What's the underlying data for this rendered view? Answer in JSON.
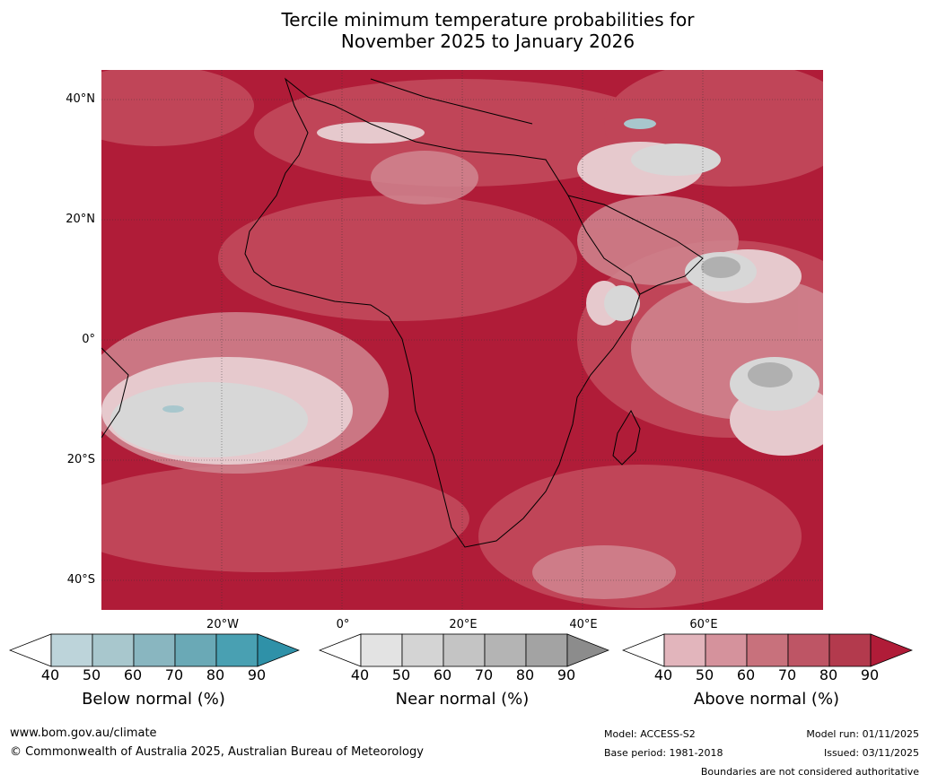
{
  "title": {
    "line1": "Tercile minimum temperature probabilities for",
    "line2": "November 2025 to January 2026"
  },
  "map": {
    "lat_labels": [
      "40°N",
      "20°N",
      "0°",
      "20°S",
      "40°S"
    ],
    "lon_labels": [
      "20°W",
      "0°",
      "20°E",
      "40°E",
      "60°E"
    ]
  },
  "legend": {
    "below": {
      "label": "Below normal (%)",
      "ticks": [
        "40",
        "50",
        "60",
        "70",
        "80",
        "90"
      ],
      "colors": [
        "#ffffff",
        "#bdd4da",
        "#a8c7cd",
        "#89b6c0",
        "#6aa9b6",
        "#49a0b2",
        "#2f91a8"
      ]
    },
    "near": {
      "label": "Near normal (%)",
      "ticks": [
        "40",
        "50",
        "60",
        "70",
        "80",
        "90"
      ],
      "colors": [
        "#ffffff",
        "#e3e3e3",
        "#d4d4d4",
        "#c4c4c4",
        "#b4b4b4",
        "#a3a3a3",
        "#8c8c8c"
      ]
    },
    "above": {
      "label": "Above normal (%)",
      "ticks": [
        "40",
        "50",
        "60",
        "70",
        "80",
        "90"
      ],
      "colors": [
        "#ffffff",
        "#e2b5bc",
        "#d5929c",
        "#c8717c",
        "#be5565",
        "#b33a4d",
        "#b01c38"
      ]
    }
  },
  "footer": {
    "website": "www.bom.gov.au/climate",
    "copyright": "© Commonwealth of Australia 2025, Australian Bureau of Meteorology",
    "model": "Model: ACCESS-S2",
    "base_period": "Base period: 1981-2018",
    "model_run": "Model run: 01/11/2025",
    "issued": "Issued: 03/11/2025",
    "disclaimer": "Boundaries are not considered authoritative"
  }
}
